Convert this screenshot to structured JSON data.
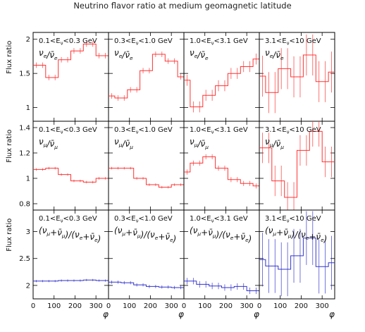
{
  "title": "Neutrino flavor ratio at medium geomagnetic latitude",
  "x_label": "φ",
  "y_label": "Flux ratio",
  "chart_data": [
    {
      "type": "step",
      "row": 0,
      "col": 0,
      "color": "#ff3333",
      "energy_range": "0.1<E_ν<0.3 GeV",
      "ratio_label": "ν_e/ν̄_e",
      "ylim": [
        0.8,
        2.1
      ],
      "yticks": [
        1,
        1.5,
        2
      ],
      "ytick_labels": [
        "1",
        "1.5",
        "2"
      ],
      "xlim": [
        0,
        360
      ],
      "xticks": [
        0,
        100,
        200,
        300
      ],
      "bin_edges": [
        0,
        30,
        60,
        90,
        120,
        150,
        180,
        210,
        240,
        270,
        300,
        330,
        360
      ],
      "values": [
        1.62,
        1.62,
        1.44,
        1.44,
        1.7,
        1.7,
        1.83,
        1.83,
        1.93,
        1.93,
        1.76,
        1.76
      ],
      "errors": [
        0.04,
        0.04,
        0.04,
        0.04,
        0.04,
        0.04,
        0.04,
        0.04,
        0.04,
        0.04,
        0.04,
        0.04
      ]
    },
    {
      "type": "step",
      "row": 0,
      "col": 1,
      "color": "#ff3333",
      "energy_range": "0.3<E_ν<1.0 GeV",
      "ratio_label": "ν_e/ν̄_e",
      "ylim": [
        0.8,
        2.1
      ],
      "bin_edges": [
        0,
        30,
        60,
        90,
        120,
        150,
        180,
        210,
        240,
        270,
        300,
        330,
        360
      ],
      "values": [
        1.17,
        1.14,
        1.14,
        1.26,
        1.26,
        1.54,
        1.54,
        1.78,
        1.78,
        1.68,
        1.68,
        1.45
      ],
      "errors": [
        0.04,
        0.04,
        0.04,
        0.04,
        0.04,
        0.04,
        0.04,
        0.04,
        0.04,
        0.04,
        0.04,
        0.04
      ]
    },
    {
      "type": "step",
      "row": 0,
      "col": 2,
      "color": "#ff3333",
      "energy_range": "1.0<E_ν<3.1 GeV",
      "ratio_label": "ν_e/ν̄_e",
      "ylim": [
        0.8,
        2.1
      ],
      "bin_edges": [
        0,
        30,
        60,
        90,
        120,
        150,
        180,
        210,
        240,
        270,
        300,
        330,
        360
      ],
      "values": [
        1.4,
        1.01,
        1.01,
        1.18,
        1.18,
        1.32,
        1.32,
        1.5,
        1.5,
        1.6,
        1.6,
        1.71
      ],
      "errors": [
        0.08,
        0.08,
        0.08,
        0.08,
        0.08,
        0.08,
        0.08,
        0.08,
        0.08,
        0.08,
        0.08,
        0.08
      ]
    },
    {
      "type": "step",
      "row": 0,
      "col": 3,
      "color": "#ff3333",
      "energy_range": "3.1<E_ν<10 GeV",
      "ratio_label": "ν_e/ν̄_e",
      "ylim": [
        0.8,
        2.1
      ],
      "bin_edges": [
        0,
        30,
        60,
        90,
        120,
        150,
        180,
        210,
        240,
        270,
        300,
        330,
        360
      ],
      "values": [
        1.46,
        1.22,
        1.22,
        1.57,
        1.57,
        1.45,
        1.45,
        1.77,
        1.77,
        1.38,
        1.38,
        1.52
      ],
      "errors": [
        0.3,
        0.3,
        0.3,
        0.3,
        0.3,
        0.3,
        0.3,
        0.3,
        0.3,
        0.3,
        0.3,
        0.3
      ]
    },
    {
      "type": "step",
      "row": 1,
      "col": 0,
      "color": "#ff3333",
      "energy_range": "0.1<E_ν<0.3 GeV",
      "ratio_label": "ν_μ/ν̄_μ",
      "ylim": [
        0.75,
        1.45
      ],
      "yticks": [
        0.8,
        1,
        1.2,
        1.4
      ],
      "ytick_labels": [
        "0.8",
        "1",
        "1.2",
        "1.4"
      ],
      "bin_edges": [
        0,
        30,
        60,
        90,
        120,
        150,
        180,
        210,
        240,
        270,
        300,
        330,
        360
      ],
      "values": [
        1.07,
        1.07,
        1.08,
        1.08,
        1.03,
        1.03,
        0.98,
        0.98,
        0.97,
        0.97,
        1.0,
        1.0
      ],
      "errors": [
        0.01,
        0.01,
        0.01,
        0.01,
        0.01,
        0.01,
        0.01,
        0.01,
        0.01,
        0.01,
        0.01,
        0.01
      ]
    },
    {
      "type": "step",
      "row": 1,
      "col": 1,
      "color": "#ff3333",
      "energy_range": "0.3<E_ν<1.0 GeV",
      "ratio_label": "ν_μ/ν̄_μ",
      "ylim": [
        0.75,
        1.45
      ],
      "bin_edges": [
        0,
        30,
        60,
        90,
        120,
        150,
        180,
        210,
        240,
        270,
        300,
        330,
        360
      ],
      "values": [
        1.08,
        1.08,
        1.08,
        1.08,
        1.0,
        1.0,
        0.95,
        0.95,
        0.93,
        0.93,
        0.95,
        0.95
      ],
      "errors": [
        0.01,
        0.01,
        0.01,
        0.01,
        0.01,
        0.01,
        0.01,
        0.01,
        0.01,
        0.01,
        0.01,
        0.01
      ]
    },
    {
      "type": "step",
      "row": 1,
      "col": 2,
      "color": "#ff3333",
      "energy_range": "1.0<E_ν<3.1 GeV",
      "ratio_label": "ν_μ/ν̄_μ",
      "ylim": [
        0.75,
        1.45
      ],
      "bin_edges": [
        0,
        30,
        60,
        90,
        120,
        150,
        180,
        210,
        240,
        270,
        300,
        330,
        360
      ],
      "values": [
        1.05,
        1.12,
        1.12,
        1.17,
        1.17,
        1.08,
        1.08,
        0.99,
        0.99,
        0.96,
        0.96,
        0.94
      ],
      "errors": [
        0.02,
        0.02,
        0.02,
        0.02,
        0.02,
        0.02,
        0.02,
        0.02,
        0.02,
        0.02,
        0.02,
        0.02
      ]
    },
    {
      "type": "step",
      "row": 1,
      "col": 3,
      "color": "#ff3333",
      "energy_range": "3.1<E_ν<10 GeV",
      "ratio_label": "ν_μ/ν̄_μ",
      "ylim": [
        0.75,
        1.45
      ],
      "bin_edges": [
        0,
        30,
        60,
        90,
        120,
        150,
        180,
        210,
        240,
        270,
        300,
        330,
        360
      ],
      "values": [
        1.24,
        1.24,
        0.98,
        0.98,
        0.85,
        0.85,
        1.22,
        1.22,
        1.37,
        1.37,
        1.13,
        1.13
      ],
      "errors": [
        0.12,
        0.12,
        0.12,
        0.12,
        0.12,
        0.12,
        0.12,
        0.12,
        0.12,
        0.12,
        0.12,
        0.12
      ]
    },
    {
      "type": "step",
      "row": 2,
      "col": 0,
      "color": "#3333cc",
      "energy_range": "0.1<E_ν<0.3 GeV",
      "ratio_label": "(ν_μ+ν̄_μ)/(ν_e+ν̄_e)",
      "ylim": [
        1.75,
        3.4
      ],
      "yticks": [
        2,
        2.5,
        3
      ],
      "ytick_labels": [
        "2",
        "2.5",
        "3"
      ],
      "bin_edges": [
        0,
        30,
        60,
        90,
        120,
        150,
        180,
        210,
        240,
        270,
        300,
        330,
        360
      ],
      "values": [
        2.08,
        2.08,
        2.08,
        2.08,
        2.09,
        2.09,
        2.09,
        2.09,
        2.1,
        2.1,
        2.09,
        2.09
      ],
      "errors": [
        0.02,
        0.02,
        0.02,
        0.02,
        0.02,
        0.02,
        0.02,
        0.02,
        0.02,
        0.02,
        0.02,
        0.02
      ]
    },
    {
      "type": "step",
      "row": 2,
      "col": 1,
      "color": "#3333cc",
      "energy_range": "0.3<E_ν<1.0 GeV",
      "ratio_label": "(ν_μ+ν̄_μ)/(ν_e+ν̄_e)",
      "ylim": [
        1.75,
        3.4
      ],
      "bin_edges": [
        0,
        30,
        60,
        90,
        120,
        150,
        180,
        210,
        240,
        270,
        300,
        330,
        360
      ],
      "values": [
        2.06,
        2.06,
        2.05,
        2.05,
        2.01,
        2.01,
        1.98,
        1.98,
        1.97,
        1.97,
        1.96,
        1.96
      ],
      "errors": [
        0.03,
        0.03,
        0.03,
        0.03,
        0.03,
        0.03,
        0.03,
        0.03,
        0.03,
        0.03,
        0.03,
        0.03
      ]
    },
    {
      "type": "step",
      "row": 2,
      "col": 2,
      "color": "#3333cc",
      "energy_range": "1.0<E_ν<3.1 GeV",
      "ratio_label": "(ν_μ+ν̄_μ)/(ν_e+ν̄_e)",
      "ylim": [
        1.75,
        3.4
      ],
      "bin_edges": [
        0,
        30,
        60,
        90,
        120,
        150,
        180,
        210,
        240,
        270,
        300,
        330,
        360
      ],
      "values": [
        2.08,
        2.08,
        2.02,
        2.02,
        1.99,
        1.99,
        1.96,
        1.96,
        1.98,
        1.98,
        1.9,
        1.9
      ],
      "errors": [
        0.06,
        0.06,
        0.06,
        0.06,
        0.06,
        0.06,
        0.06,
        0.06,
        0.06,
        0.06,
        0.06,
        0.06
      ]
    },
    {
      "type": "step",
      "row": 2,
      "col": 3,
      "color": "#3333cc",
      "energy_range": "3.1<E_ν<10 GeV",
      "ratio_label": "(ν_μ+ν̄_μ)/(ν_e+ν̄_e)",
      "ylim": [
        1.75,
        3.4
      ],
      "bin_edges": [
        0,
        30,
        60,
        90,
        120,
        150,
        180,
        210,
        240,
        270,
        300,
        330,
        360
      ],
      "values": [
        2.48,
        2.36,
        2.36,
        2.3,
        2.3,
        2.55,
        2.55,
        2.88,
        2.88,
        2.35,
        2.35,
        2.42
      ],
      "errors": [
        0.5,
        0.5,
        0.5,
        0.5,
        0.5,
        0.5,
        0.5,
        0.5,
        0.5,
        0.5,
        0.5,
        0.5
      ]
    }
  ]
}
